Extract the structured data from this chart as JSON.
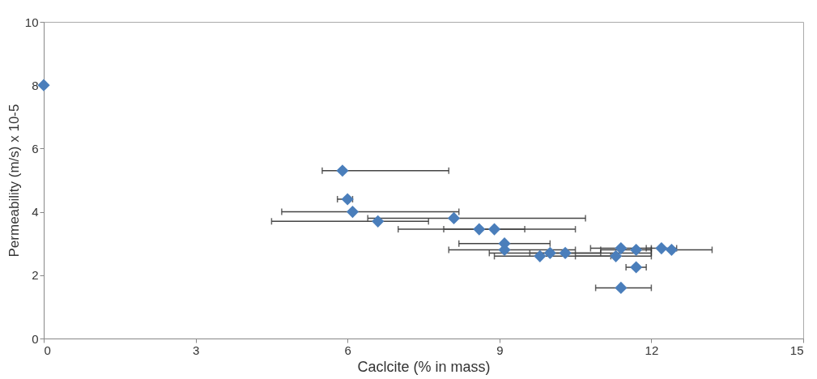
{
  "chart_data": {
    "type": "scatter",
    "xlabel": "Caclcite (% in mass)",
    "ylabel": "Permeability (m/s) x 10-5",
    "x": [
      0,
      5.9,
      6.0,
      6.1,
      6.6,
      8.1,
      8.6,
      8.9,
      9.1,
      9.1,
      9.8,
      10.0,
      10.3,
      11.3,
      11.4,
      11.7,
      12.2,
      12.4,
      11.7,
      11.4
    ],
    "series": [
      {
        "color": "#4a7ebb",
        "values": [
          8,
          5.3,
          4.4,
          4.0,
          3.7,
          3.8,
          3.45,
          3.45,
          3.0,
          2.8,
          2.6,
          2.7,
          2.7,
          2.6,
          2.85,
          2.8,
          2.85,
          2.8,
          2.25,
          1.6
        ],
        "xerrors": [
          null,
          [
            5.5,
            8.0
          ],
          [
            5.8,
            6.1
          ],
          [
            4.7,
            8.2
          ],
          [
            4.5,
            7.6
          ],
          [
            6.4,
            10.7
          ],
          [
            7.0,
            10.5
          ],
          [
            7.9,
            9.5
          ],
          [
            8.2,
            10.0
          ],
          [
            8.0,
            10.5
          ],
          [
            8.9,
            11.2
          ],
          [
            8.8,
            11.0
          ],
          [
            9.6,
            12.0
          ],
          [
            10.5,
            12.0
          ],
          [
            10.8,
            12.0
          ],
          [
            11.0,
            12.0
          ],
          [
            11.9,
            12.5
          ],
          [
            12.4,
            13.2
          ],
          [
            11.5,
            11.9
          ],
          [
            10.9,
            12.0
          ]
        ]
      }
    ],
    "xlim": [
      0,
      15
    ],
    "xticks": [
      0,
      3,
      6,
      9,
      12,
      15
    ],
    "ylim": [
      0,
      10
    ],
    "yticks": [
      0,
      2,
      4,
      6,
      8,
      10
    ],
    "marker": "diamond",
    "grid": false
  }
}
